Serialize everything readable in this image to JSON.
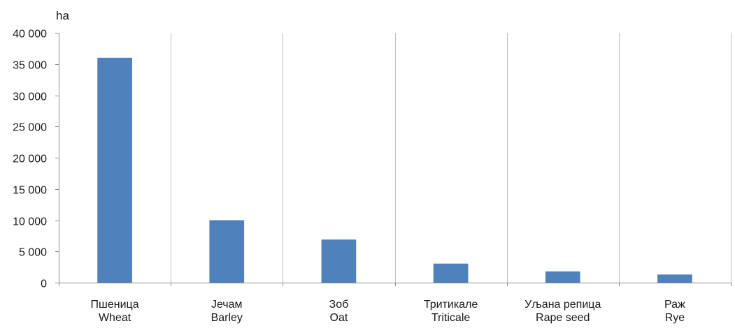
{
  "chart_data": {
    "type": "bar",
    "title": "",
    "unit_label": "ha",
    "categories": [
      {
        "label_sr": "Пшеница",
        "label_en": "Wheat"
      },
      {
        "label_sr": "Јечам",
        "label_en": "Barley"
      },
      {
        "label_sr": "Зоб",
        "label_en": "Oat"
      },
      {
        "label_sr": "Тритикале",
        "label_en": "Triticale"
      },
      {
        "label_sr": "Уљана репица",
        "label_en": "Rape seed"
      },
      {
        "label_sr": "Раж",
        "label_en": "Rye"
      }
    ],
    "values": [
      36000,
      10000,
      6900,
      3050,
      1800,
      1300
    ],
    "ylim": [
      0,
      40000
    ],
    "yticks": [
      0,
      5000,
      10000,
      15000,
      20000,
      25000,
      30000,
      35000,
      40000
    ],
    "ytick_labels": [
      "0",
      "5 000",
      "10 000",
      "15 000",
      "20 000",
      "25 000",
      "30 000",
      "35 000",
      "40 000"
    ],
    "grid": "vertical",
    "legend": "none",
    "bar_color": "#4f81bd",
    "grid_color": "#bfbfbf",
    "axis_color": "#8c8c8c"
  }
}
